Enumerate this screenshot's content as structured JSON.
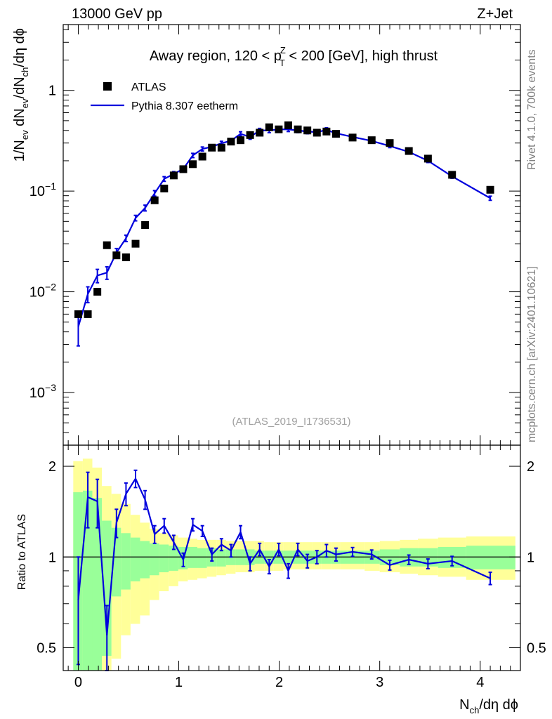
{
  "header": {
    "left": "13000 GeV pp",
    "right": "Z+Jet"
  },
  "side_text": {
    "rivet": "Rivet 4.1.0,  700k events",
    "mcplots": "mcplots.cern.ch [arXiv:2401.10621]"
  },
  "title": {
    "prefix": "Away region, 120 < p",
    "sup": "Z",
    "sub": "T",
    "suffix": " < 200 [GeV], high thrust"
  },
  "watermark": "(ATLAS_2019_I1736531)",
  "legend": {
    "data_label": "ATLAS",
    "mc_label": "Pythia 8.307 eetherm"
  },
  "labels": {
    "ylabel_main": "1/N_ev dN_ev/dN_ch/dη dϕ",
    "ylabel_main_parts": [
      "1/N",
      "ev",
      " dN",
      "ev",
      "/dN",
      "ch",
      "/dη dϕ"
    ],
    "ylabel_ratio": "Ratio to ATLAS",
    "xlabel": "N_ch/dη dϕ",
    "xlabel_parts": [
      "N",
      "ch",
      "/dη dϕ"
    ]
  },
  "colors": {
    "mc": "#0000dd",
    "data": "#000000",
    "band_inner": "#99ff99",
    "band_outer": "#ffff99"
  },
  "chart_data": [
    {
      "type": "scatter",
      "panel": "main",
      "yscale": "log",
      "xlim": [
        -0.15,
        4.4
      ],
      "ylim": [
        0.0003,
        4.5
      ],
      "x_ticks": [
        0,
        1,
        2,
        3,
        4
      ],
      "x_tick_labels": [
        "0",
        "1",
        "2",
        "3",
        "4"
      ],
      "y_ticks": [
        1,
        0.1,
        0.01,
        0.001
      ],
      "y_tick_labels": [
        {
          "base": "1",
          "exp": ""
        },
        {
          "base": "10",
          "exp": "−1"
        },
        {
          "base": "10",
          "exp": "−2"
        },
        {
          "base": "10",
          "exp": "−3"
        }
      ],
      "series": [
        {
          "name": "ATLAS",
          "style": "markers",
          "x": [
            0.0,
            0.095,
            0.19,
            0.285,
            0.38,
            0.475,
            0.57,
            0.665,
            0.76,
            0.855,
            0.95,
            1.045,
            1.14,
            1.235,
            1.33,
            1.425,
            1.52,
            1.615,
            1.71,
            1.805,
            1.9,
            1.995,
            2.09,
            2.185,
            2.28,
            2.375,
            2.47,
            2.565,
            2.73,
            2.92,
            3.1,
            3.29,
            3.48,
            3.72,
            4.1
          ],
          "y": [
            0.006,
            0.006,
            0.01,
            0.029,
            0.023,
            0.022,
            0.03,
            0.046,
            0.081,
            0.106,
            0.143,
            0.165,
            0.185,
            0.22,
            0.27,
            0.27,
            0.31,
            0.32,
            0.36,
            0.38,
            0.43,
            0.41,
            0.45,
            0.41,
            0.4,
            0.38,
            0.39,
            0.37,
            0.34,
            0.32,
            0.3,
            0.25,
            0.21,
            0.145,
            0.103
          ]
        },
        {
          "name": "Pythia 8.307 eetherm",
          "style": "line",
          "x": [
            0.0,
            0.095,
            0.19,
            0.285,
            0.38,
            0.475,
            0.57,
            0.665,
            0.76,
            0.855,
            0.95,
            1.045,
            1.14,
            1.235,
            1.33,
            1.425,
            1.52,
            1.615,
            1.71,
            1.805,
            1.9,
            1.995,
            2.09,
            2.185,
            2.28,
            2.375,
            2.47,
            2.565,
            2.73,
            2.92,
            3.1,
            3.29,
            3.48,
            3.72,
            4.1
          ],
          "y": [
            0.0045,
            0.0095,
            0.0145,
            0.0155,
            0.0245,
            0.034,
            0.054,
            0.068,
            0.095,
            0.132,
            0.148,
            0.166,
            0.226,
            0.262,
            0.276,
            0.298,
            0.316,
            0.37,
            0.344,
            0.4,
            0.4,
            0.41,
            0.41,
            0.4,
            0.39,
            0.385,
            0.405,
            0.375,
            0.345,
            0.315,
            0.28,
            0.245,
            0.2,
            0.14,
            0.085
          ],
          "err_lo": [
            0.0016,
            0.0017,
            0.0022,
            0.0022,
            0.0024,
            0.0025,
            0.0034,
            0.0045,
            0.006,
            0.007,
            0.008,
            0.009,
            0.011,
            0.012,
            0.013,
            0.014,
            0.015,
            0.018,
            0.017,
            0.019,
            0.02,
            0.02,
            0.02,
            0.02,
            0.019,
            0.019,
            0.02,
            0.018,
            0.012,
            0.011,
            0.01,
            0.009,
            0.008,
            0.006,
            0.004
          ],
          "err_hi": [
            0.0016,
            0.0017,
            0.0022,
            0.0022,
            0.0024,
            0.0025,
            0.0034,
            0.0045,
            0.006,
            0.007,
            0.008,
            0.009,
            0.011,
            0.012,
            0.013,
            0.014,
            0.015,
            0.018,
            0.017,
            0.019,
            0.02,
            0.02,
            0.02,
            0.02,
            0.019,
            0.019,
            0.02,
            0.018,
            0.012,
            0.011,
            0.01,
            0.009,
            0.008,
            0.006,
            0.004
          ]
        }
      ]
    },
    {
      "type": "line",
      "panel": "ratio",
      "yscale": "log",
      "xlim": [
        -0.15,
        4.4
      ],
      "ylim": [
        0.42,
        2.35
      ],
      "y_ticks": [
        2,
        1,
        0.5
      ],
      "y_tick_labels": [
        "2",
        "1",
        "0.5"
      ],
      "reference_line": 1,
      "bands": {
        "edges": [
          -0.05,
          0.045,
          0.14,
          0.235,
          0.33,
          0.425,
          0.52,
          0.615,
          0.71,
          0.805,
          0.9,
          0.995,
          1.09,
          1.185,
          1.28,
          1.375,
          1.47,
          1.565,
          1.66,
          1.755,
          1.85,
          1.945,
          2.04,
          2.135,
          2.23,
          2.325,
          2.42,
          2.515,
          2.61,
          2.85,
          3.0,
          3.2,
          3.38,
          3.58,
          3.86,
          4.35
        ],
        "inner_lo": [
          0.41,
          0.4,
          0.37,
          0.47,
          0.74,
          0.78,
          0.83,
          0.85,
          0.87,
          0.89,
          0.9,
          0.91,
          0.92,
          0.92,
          0.93,
          0.93,
          0.94,
          0.94,
          0.94,
          0.95,
          0.95,
          0.95,
          0.95,
          0.95,
          0.95,
          0.95,
          0.95,
          0.95,
          0.95,
          0.95,
          0.94,
          0.93,
          0.93,
          0.92,
          0.91
        ],
        "inner_hi": [
          1.64,
          1.66,
          1.57,
          1.32,
          1.25,
          1.2,
          1.16,
          1.13,
          1.11,
          1.1,
          1.09,
          1.08,
          1.08,
          1.07,
          1.07,
          1.06,
          1.06,
          1.06,
          1.06,
          1.05,
          1.05,
          1.05,
          1.05,
          1.05,
          1.05,
          1.05,
          1.05,
          1.05,
          1.05,
          1.05,
          1.06,
          1.07,
          1.07,
          1.08,
          1.09
        ],
        "outer_lo": [
          0.38,
          0.36,
          0.32,
          0.4,
          0.46,
          0.55,
          0.6,
          0.64,
          0.72,
          0.77,
          0.8,
          0.83,
          0.84,
          0.85,
          0.86,
          0.87,
          0.88,
          0.89,
          0.89,
          0.9,
          0.9,
          0.9,
          0.91,
          0.91,
          0.91,
          0.91,
          0.91,
          0.91,
          0.91,
          0.9,
          0.89,
          0.88,
          0.87,
          0.86,
          0.84
        ],
        "outer_hi": [
          2.08,
          2.12,
          1.98,
          1.72,
          1.62,
          1.5,
          1.38,
          1.3,
          1.24,
          1.2,
          1.18,
          1.16,
          1.15,
          1.14,
          1.14,
          1.14,
          1.13,
          1.13,
          1.13,
          1.13,
          1.12,
          1.12,
          1.12,
          1.12,
          1.12,
          1.12,
          1.12,
          1.12,
          1.12,
          1.12,
          1.13,
          1.14,
          1.15,
          1.16,
          1.17
        ]
      },
      "series": [
        {
          "name": "Pythia 8.307 eetherm / ATLAS",
          "x": [
            0.0,
            0.095,
            0.19,
            0.285,
            0.38,
            0.475,
            0.57,
            0.665,
            0.76,
            0.855,
            0.95,
            1.045,
            1.14,
            1.235,
            1.33,
            1.425,
            1.52,
            1.615,
            1.71,
            1.805,
            1.9,
            1.995,
            2.09,
            2.185,
            2.28,
            2.375,
            2.47,
            2.565,
            2.73,
            2.92,
            3.1,
            3.29,
            3.48,
            3.72,
            4.1
          ],
          "y": [
            0.72,
            1.58,
            1.53,
            0.55,
            1.3,
            1.62,
            1.82,
            1.55,
            1.19,
            1.27,
            1.12,
            0.98,
            1.28,
            1.22,
            1.02,
            1.1,
            1.05,
            1.21,
            0.95,
            1.06,
            0.93,
            1.06,
            0.9,
            1.06,
            0.97,
            1.0,
            1.05,
            1.02,
            1.04,
            1.02,
            0.94,
            0.98,
            0.95,
            0.97,
            0.85
          ],
          "err_lo": [
            0.28,
            0.33,
            0.28,
            0.14,
            0.14,
            0.14,
            0.12,
            0.11,
            0.08,
            0.07,
            0.06,
            0.05,
            0.06,
            0.05,
            0.05,
            0.05,
            0.05,
            0.06,
            0.05,
            0.05,
            0.05,
            0.05,
            0.05,
            0.05,
            0.05,
            0.05,
            0.05,
            0.05,
            0.035,
            0.035,
            0.035,
            0.035,
            0.035,
            0.035,
            0.04
          ],
          "err_hi": [
            0.28,
            0.33,
            0.28,
            0.14,
            0.14,
            0.14,
            0.12,
            0.11,
            0.08,
            0.07,
            0.06,
            0.05,
            0.06,
            0.05,
            0.05,
            0.05,
            0.05,
            0.06,
            0.05,
            0.05,
            0.05,
            0.05,
            0.05,
            0.05,
            0.05,
            0.05,
            0.05,
            0.05,
            0.035,
            0.035,
            0.035,
            0.035,
            0.035,
            0.035,
            0.04
          ]
        }
      ]
    }
  ]
}
